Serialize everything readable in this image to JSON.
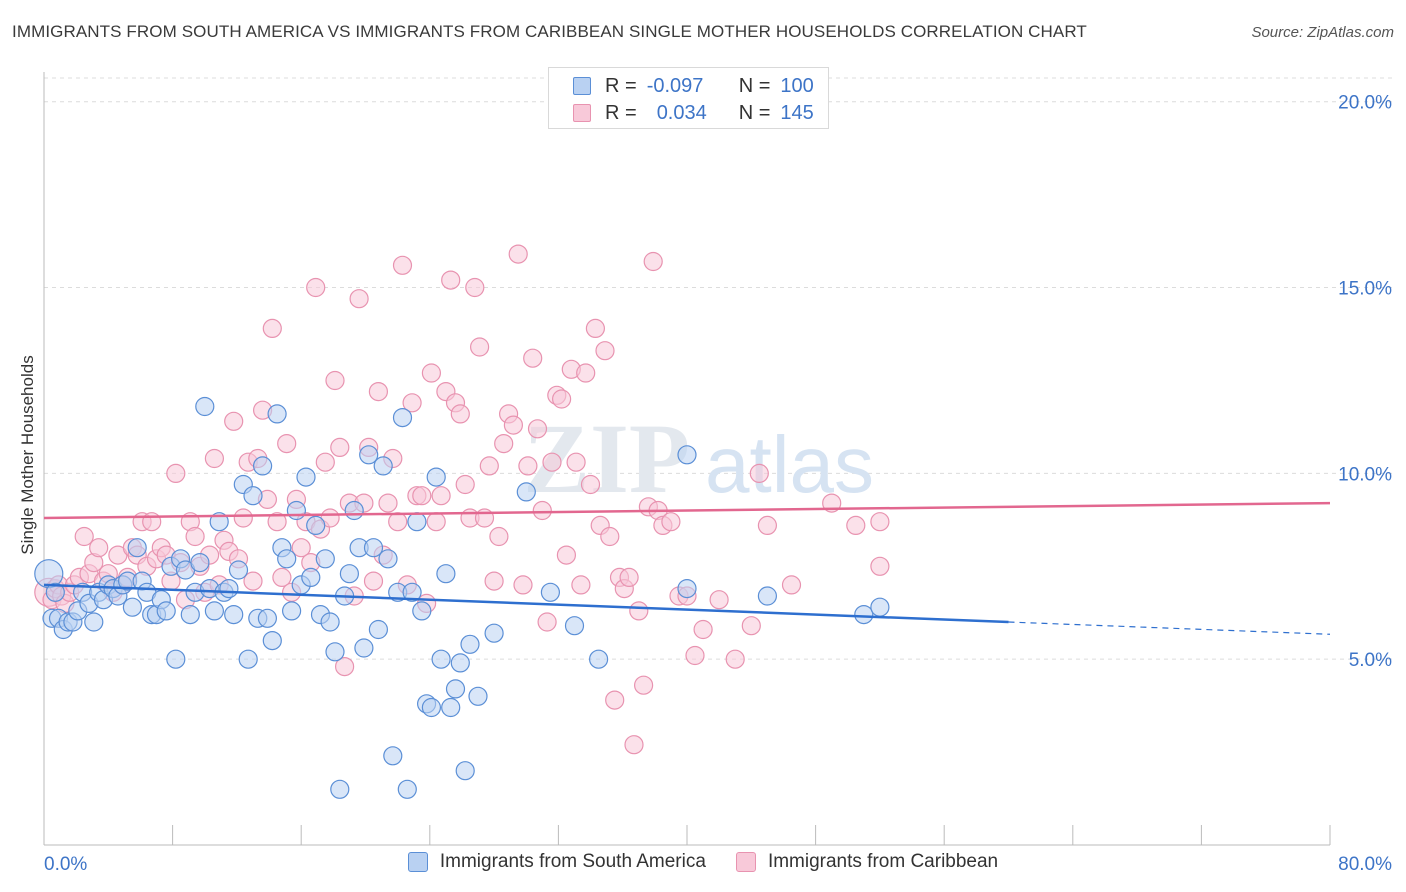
{
  "header": {
    "title": "IMMIGRANTS FROM SOUTH AMERICA VS IMMIGRANTS FROM CARIBBEAN SINGLE MOTHER HOUSEHOLDS CORRELATION CHART",
    "source": "Source: ZipAtlas.com"
  },
  "colors": {
    "blue": "#5b8fd6",
    "blue_fill": "#b9d1f2",
    "blue_line": "#2e6fcf",
    "pink": "#e893b0",
    "pink_fill": "#f8c9d9",
    "pink_line": "#e2678f",
    "tick": "#3d74c7",
    "grid": "#dcdcdc"
  },
  "legend": {
    "rows": [
      {
        "r_label": "R =",
        "r_value": "-0.097",
        "n_label": "N =",
        "n_value": "100"
      },
      {
        "r_label": "R =",
        "r_value": "0.034",
        "n_label": "N =",
        "n_value": "145"
      }
    ]
  },
  "bottom_legend": {
    "items": [
      {
        "label": "Immigrants from South America"
      },
      {
        "label": "Immigrants from Caribbean"
      }
    ]
  },
  "chart_data": {
    "type": "scatter",
    "ylabel": "Single Mother Households",
    "xlim": [
      0,
      80
    ],
    "ylim": [
      0,
      20.8
    ],
    "x_tick_labels": [
      {
        "value": 0,
        "label": "0.0%"
      },
      {
        "value": 80,
        "label": "80.0%"
      }
    ],
    "y_tick_labels": [
      {
        "value": 5,
        "label": "5.0%"
      },
      {
        "value": 10,
        "label": "10.0%"
      },
      {
        "value": 15,
        "label": "15.0%"
      },
      {
        "value": 20,
        "label": "20.0%"
      }
    ],
    "series": [
      {
        "name": "Immigrants from South America",
        "trend": {
          "x0": 0,
          "y0": 7.0,
          "x1": 60,
          "y1": 6.0,
          "dash_to_x": 80,
          "dash_to_y": 5.67
        },
        "points": [
          [
            0.3,
            7.3
          ],
          [
            0.5,
            6.1
          ],
          [
            0.7,
            6.8
          ],
          [
            0.9,
            6.1
          ],
          [
            1.2,
            5.8
          ],
          [
            1.5,
            6.0
          ],
          [
            1.8,
            6.0
          ],
          [
            2.1,
            6.3
          ],
          [
            2.4,
            6.8
          ],
          [
            2.8,
            6.5
          ],
          [
            3.1,
            6.0
          ],
          [
            3.4,
            6.8
          ],
          [
            3.7,
            6.6
          ],
          [
            4.0,
            7.0
          ],
          [
            4.3,
            6.9
          ],
          [
            4.6,
            6.7
          ],
          [
            4.9,
            7.0
          ],
          [
            5.2,
            7.1
          ],
          [
            5.5,
            6.4
          ],
          [
            5.8,
            8.0
          ],
          [
            6.1,
            7.1
          ],
          [
            6.4,
            6.8
          ],
          [
            6.7,
            6.2
          ],
          [
            7.0,
            6.2
          ],
          [
            7.3,
            6.6
          ],
          [
            7.6,
            6.3
          ],
          [
            7.9,
            7.5
          ],
          [
            8.2,
            5.0
          ],
          [
            8.5,
            7.7
          ],
          [
            8.8,
            7.4
          ],
          [
            9.1,
            6.2
          ],
          [
            9.4,
            6.8
          ],
          [
            9.7,
            7.6
          ],
          [
            10.0,
            11.8
          ],
          [
            10.3,
            6.9
          ],
          [
            10.6,
            6.3
          ],
          [
            10.9,
            8.7
          ],
          [
            11.2,
            6.8
          ],
          [
            11.5,
            6.9
          ],
          [
            11.8,
            6.2
          ],
          [
            12.1,
            7.4
          ],
          [
            12.4,
            9.7
          ],
          [
            12.7,
            5.0
          ],
          [
            13.0,
            9.4
          ],
          [
            13.3,
            6.1
          ],
          [
            13.6,
            10.2
          ],
          [
            13.9,
            6.1
          ],
          [
            14.2,
            5.5
          ],
          [
            14.5,
            11.6
          ],
          [
            14.8,
            8.0
          ],
          [
            15.1,
            7.7
          ],
          [
            15.4,
            6.3
          ],
          [
            15.7,
            9.0
          ],
          [
            16.0,
            7.0
          ],
          [
            16.3,
            9.9
          ],
          [
            16.6,
            7.2
          ],
          [
            16.9,
            8.6
          ],
          [
            17.2,
            6.2
          ],
          [
            17.5,
            7.7
          ],
          [
            17.8,
            6.0
          ],
          [
            18.1,
            5.2
          ],
          [
            18.4,
            1.5
          ],
          [
            18.7,
            6.7
          ],
          [
            19.0,
            7.3
          ],
          [
            19.3,
            9.0
          ],
          [
            19.6,
            8.0
          ],
          [
            19.9,
            5.3
          ],
          [
            20.2,
            10.5
          ],
          [
            20.5,
            8.0
          ],
          [
            20.8,
            5.8
          ],
          [
            21.1,
            10.2
          ],
          [
            21.4,
            7.7
          ],
          [
            21.7,
            2.4
          ],
          [
            22.0,
            6.8
          ],
          [
            22.3,
            11.5
          ],
          [
            22.6,
            1.5
          ],
          [
            22.9,
            6.8
          ],
          [
            23.2,
            8.7
          ],
          [
            23.5,
            6.3
          ],
          [
            23.8,
            3.8
          ],
          [
            24.1,
            3.7
          ],
          [
            24.4,
            9.9
          ],
          [
            24.7,
            5.0
          ],
          [
            25.0,
            7.3
          ],
          [
            25.3,
            3.7
          ],
          [
            25.6,
            4.2
          ],
          [
            25.9,
            4.9
          ],
          [
            26.2,
            2.0
          ],
          [
            26.5,
            5.4
          ],
          [
            27.0,
            4.0
          ],
          [
            28.0,
            5.7
          ],
          [
            30.0,
            9.5
          ],
          [
            31.5,
            6.8
          ],
          [
            33.0,
            5.9
          ],
          [
            34.5,
            5.0
          ],
          [
            40.0,
            10.5
          ],
          [
            40.0,
            6.9
          ],
          [
            45.0,
            6.7
          ],
          [
            51.0,
            6.2
          ],
          [
            52.0,
            6.4
          ]
        ]
      },
      {
        "name": "Immigrants from Caribbean",
        "trend": {
          "x0": 0,
          "y0": 8.8,
          "x1": 80,
          "y1": 9.2
        },
        "points": [
          [
            0.3,
            6.8
          ],
          [
            0.5,
            6.6
          ],
          [
            0.7,
            6.9
          ],
          [
            0.9,
            7.0
          ],
          [
            1.1,
            6.7
          ],
          [
            1.3,
            6.5
          ],
          [
            1.6,
            6.8
          ],
          [
            1.9,
            7.0
          ],
          [
            2.2,
            7.2
          ],
          [
            2.5,
            8.3
          ],
          [
            2.8,
            7.3
          ],
          [
            3.1,
            7.6
          ],
          [
            3.4,
            8.0
          ],
          [
            3.7,
            7.1
          ],
          [
            4.0,
            7.3
          ],
          [
            4.3,
            6.8
          ],
          [
            4.6,
            7.8
          ],
          [
            4.9,
            7.0
          ],
          [
            5.2,
            7.2
          ],
          [
            5.5,
            8.0
          ],
          [
            5.8,
            7.8
          ],
          [
            6.1,
            8.7
          ],
          [
            6.4,
            7.5
          ],
          [
            6.7,
            8.7
          ],
          [
            7.0,
            7.7
          ],
          [
            7.3,
            8.0
          ],
          [
            7.6,
            7.8
          ],
          [
            7.9,
            7.1
          ],
          [
            8.2,
            10.0
          ],
          [
            8.5,
            7.6
          ],
          [
            8.8,
            6.6
          ],
          [
            9.1,
            8.7
          ],
          [
            9.4,
            8.3
          ],
          [
            9.7,
            7.5
          ],
          [
            10.0,
            6.8
          ],
          [
            10.3,
            7.8
          ],
          [
            10.6,
            10.4
          ],
          [
            10.9,
            7.0
          ],
          [
            11.2,
            8.2
          ],
          [
            11.5,
            7.9
          ],
          [
            11.8,
            11.4
          ],
          [
            12.1,
            7.7
          ],
          [
            12.4,
            8.8
          ],
          [
            12.7,
            10.3
          ],
          [
            13.0,
            7.1
          ],
          [
            13.3,
            10.4
          ],
          [
            13.6,
            11.7
          ],
          [
            13.9,
            9.3
          ],
          [
            14.2,
            13.9
          ],
          [
            14.5,
            8.7
          ],
          [
            14.8,
            7.2
          ],
          [
            15.1,
            10.8
          ],
          [
            15.4,
            6.8
          ],
          [
            15.7,
            9.3
          ],
          [
            16.0,
            8.0
          ],
          [
            16.3,
            8.7
          ],
          [
            16.6,
            7.6
          ],
          [
            16.9,
            15.0
          ],
          [
            17.2,
            8.5
          ],
          [
            17.5,
            10.3
          ],
          [
            17.8,
            8.8
          ],
          [
            18.1,
            12.5
          ],
          [
            18.4,
            10.7
          ],
          [
            18.7,
            4.8
          ],
          [
            19.0,
            9.2
          ],
          [
            19.3,
            6.7
          ],
          [
            19.6,
            14.7
          ],
          [
            19.9,
            9.2
          ],
          [
            20.2,
            10.7
          ],
          [
            20.5,
            7.1
          ],
          [
            20.8,
            12.2
          ],
          [
            21.1,
            7.8
          ],
          [
            21.4,
            9.2
          ],
          [
            21.7,
            10.4
          ],
          [
            22.0,
            8.7
          ],
          [
            22.3,
            15.6
          ],
          [
            22.6,
            7.0
          ],
          [
            22.9,
            11.9
          ],
          [
            23.2,
            9.4
          ],
          [
            23.5,
            9.4
          ],
          [
            23.8,
            6.5
          ],
          [
            24.1,
            12.7
          ],
          [
            24.4,
            8.7
          ],
          [
            24.7,
            9.4
          ],
          [
            25.0,
            12.2
          ],
          [
            25.3,
            15.2
          ],
          [
            25.6,
            11.9
          ],
          [
            25.9,
            11.6
          ],
          [
            26.2,
            9.7
          ],
          [
            26.5,
            8.8
          ],
          [
            26.8,
            15.0
          ],
          [
            27.1,
            13.4
          ],
          [
            27.4,
            8.8
          ],
          [
            27.7,
            10.2
          ],
          [
            28.0,
            7.1
          ],
          [
            28.3,
            8.3
          ],
          [
            28.6,
            10.8
          ],
          [
            28.9,
            11.6
          ],
          [
            29.2,
            11.3
          ],
          [
            29.5,
            15.9
          ],
          [
            29.8,
            7.0
          ],
          [
            30.1,
            10.2
          ],
          [
            30.4,
            13.1
          ],
          [
            30.7,
            11.2
          ],
          [
            31.0,
            9.0
          ],
          [
            31.3,
            6.0
          ],
          [
            31.6,
            10.3
          ],
          [
            31.9,
            12.1
          ],
          [
            32.2,
            12.0
          ],
          [
            32.5,
            7.8
          ],
          [
            32.8,
            12.8
          ],
          [
            33.1,
            10.3
          ],
          [
            33.4,
            7.0
          ],
          [
            33.7,
            12.7
          ],
          [
            34.0,
            9.7
          ],
          [
            34.3,
            13.9
          ],
          [
            34.6,
            8.6
          ],
          [
            34.9,
            13.3
          ],
          [
            35.2,
            8.3
          ],
          [
            35.5,
            3.9
          ],
          [
            35.8,
            7.2
          ],
          [
            36.1,
            6.9
          ],
          [
            36.4,
            7.2
          ],
          [
            36.7,
            2.7
          ],
          [
            37.0,
            6.3
          ],
          [
            37.3,
            4.3
          ],
          [
            37.6,
            9.1
          ],
          [
            37.9,
            15.7
          ],
          [
            38.2,
            9.0
          ],
          [
            38.5,
            8.6
          ],
          [
            39.0,
            8.7
          ],
          [
            39.5,
            6.7
          ],
          [
            40.0,
            6.7
          ],
          [
            40.5,
            5.1
          ],
          [
            41.0,
            5.8
          ],
          [
            42.0,
            6.6
          ],
          [
            43.0,
            5.0
          ],
          [
            44.0,
            5.9
          ],
          [
            44.5,
            10.0
          ],
          [
            45.0,
            8.6
          ],
          [
            46.5,
            7.0
          ],
          [
            49.0,
            9.2
          ],
          [
            50.5,
            8.6
          ],
          [
            52.0,
            8.7
          ],
          [
            52.0,
            7.5
          ]
        ]
      }
    ]
  }
}
